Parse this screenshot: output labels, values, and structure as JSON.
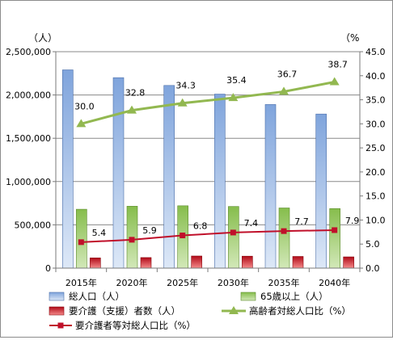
{
  "chart_data": {
    "type": "bar",
    "categories": [
      "2015年",
      "2020年",
      "2025年",
      "2030年",
      "2035年",
      "2040年"
    ],
    "left_axis": {
      "unit": "（人）",
      "ylim": [
        0,
        2500000
      ],
      "ticks": [
        "0",
        "500,000",
        "1,000,000",
        "1,500,000",
        "2,000,000",
        "2,500,000"
      ]
    },
    "right_axis": {
      "unit": "（%",
      "ylim": [
        0,
        45
      ],
      "ticks": [
        "0.0",
        "5.0",
        "10.0",
        "15.0",
        "20.0",
        "25.0",
        "30.0",
        "35.0",
        "40.0",
        "45.0"
      ]
    },
    "series": [
      {
        "name": "総人口（人）",
        "kind": "bar",
        "axis": "left",
        "color": "#a6c1e8",
        "values": [
          2290000,
          2200000,
          2110000,
          2010000,
          1890000,
          1780000
        ]
      },
      {
        "name": "65歳以上（人）",
        "kind": "bar",
        "axis": "left",
        "color": "#8fc35a",
        "values": [
          680000,
          715000,
          720000,
          712000,
          695000,
          688000
        ]
      },
      {
        "name": "要介護（支援）者数（人）",
        "kind": "bar",
        "axis": "left",
        "color": "#e02525",
        "values": [
          118000,
          122000,
          140000,
          138000,
          135000,
          130000
        ]
      },
      {
        "name": "高齢者対総人口比（%）",
        "kind": "line",
        "axis": "right",
        "color": "#92b850",
        "values": [
          30.0,
          32.8,
          34.3,
          35.4,
          36.7,
          38.7
        ],
        "labels": [
          "30.0",
          "32.8",
          "34.3",
          "35.4",
          "36.7",
          "38.7"
        ]
      },
      {
        "name": "要介護者等対総人口比（%）",
        "kind": "line",
        "axis": "right",
        "color": "#c0102a",
        "values": [
          5.4,
          5.9,
          6.8,
          7.4,
          7.7,
          7.9
        ],
        "labels": [
          "5.4",
          "5.9",
          "6.8",
          "7.4",
          "7.7",
          "7.9"
        ]
      }
    ],
    "grid": true,
    "legend_position": "bottom"
  }
}
